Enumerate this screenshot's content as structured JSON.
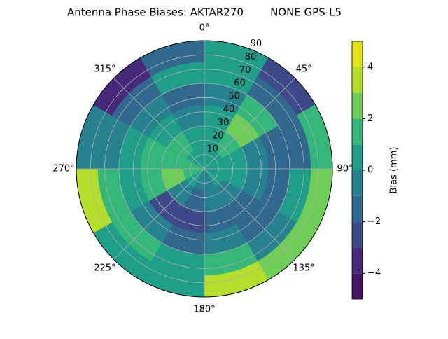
{
  "chart_data": {
    "type": "polar-contour",
    "title": "Antenna Phase Biases: AKTAR270        NONE GPS-L5",
    "azimuth_bins": [
      0,
      30,
      60,
      90,
      120,
      150,
      180,
      210,
      240,
      270,
      300,
      330,
      360
    ],
    "zenith_bins": [
      0,
      15,
      30,
      45,
      60,
      75,
      90
    ],
    "z": [
      [
        0.5,
        1,
        0.5,
        -0.5,
        0.5,
        0.5
      ],
      [
        0.5,
        1.5,
        2.5,
        1.5,
        -1.5,
        -2.5
      ],
      [
        0.5,
        0.5,
        -0.5,
        -1.5,
        -1.5,
        1.5
      ],
      [
        0.5,
        0.5,
        -0.5,
        -1.5,
        0.5,
        2.5
      ],
      [
        0.5,
        -0.5,
        -1.5,
        -1.5,
        -0.5,
        2.5
      ],
      [
        -0.5,
        -0.5,
        -1.5,
        -0.5,
        1.5,
        3.5
      ],
      [
        -0.5,
        -1.5,
        -2.5,
        -1.5,
        0.5,
        0.5
      ],
      [
        0.5,
        -0.5,
        -2.5,
        -0.5,
        1.5,
        0.5
      ],
      [
        1.5,
        2.5,
        1.5,
        0.5,
        1.5,
        3.5
      ],
      [
        1.5,
        1.5,
        1.5,
        0.5,
        -0.5,
        -0.5
      ],
      [
        0.5,
        1.5,
        0.5,
        -0.5,
        -1.5,
        -3.5
      ],
      [
        0.5,
        0.5,
        -0.5,
        -1.5,
        0.5,
        -1.5
      ]
    ],
    "levels": [
      -5,
      -4,
      -3,
      -2,
      -1,
      0,
      1,
      2,
      3,
      4,
      5
    ],
    "colors": [
      "#471365",
      "#482878",
      "#3e4989",
      "#31688e",
      "#26828e",
      "#1f9e89",
      "#35b779",
      "#6ece58",
      "#b5de2b",
      "#e5e419"
    ],
    "rlim": [
      0,
      90
    ],
    "rticks": [
      10,
      20,
      30,
      40,
      50,
      60,
      70,
      80,
      90
    ],
    "thetaticks": [
      {
        "value": 0,
        "label": "0°"
      },
      {
        "value": 45,
        "label": "45°"
      },
      {
        "value": 90,
        "label": "90°"
      },
      {
        "value": 135,
        "label": "135°"
      },
      {
        "value": 180,
        "label": "180°"
      },
      {
        "value": 225,
        "label": "225°"
      },
      {
        "value": 270,
        "label": "270°"
      },
      {
        "value": 315,
        "label": "315°"
      }
    ],
    "grid": true,
    "colorbar_label": "Bias (mm)",
    "clim": [
      -5,
      5
    ],
    "cticks": [
      {
        "value": -4,
        "label": "−4"
      },
      {
        "value": -2,
        "label": "−2"
      },
      0,
      2,
      4
    ]
  }
}
